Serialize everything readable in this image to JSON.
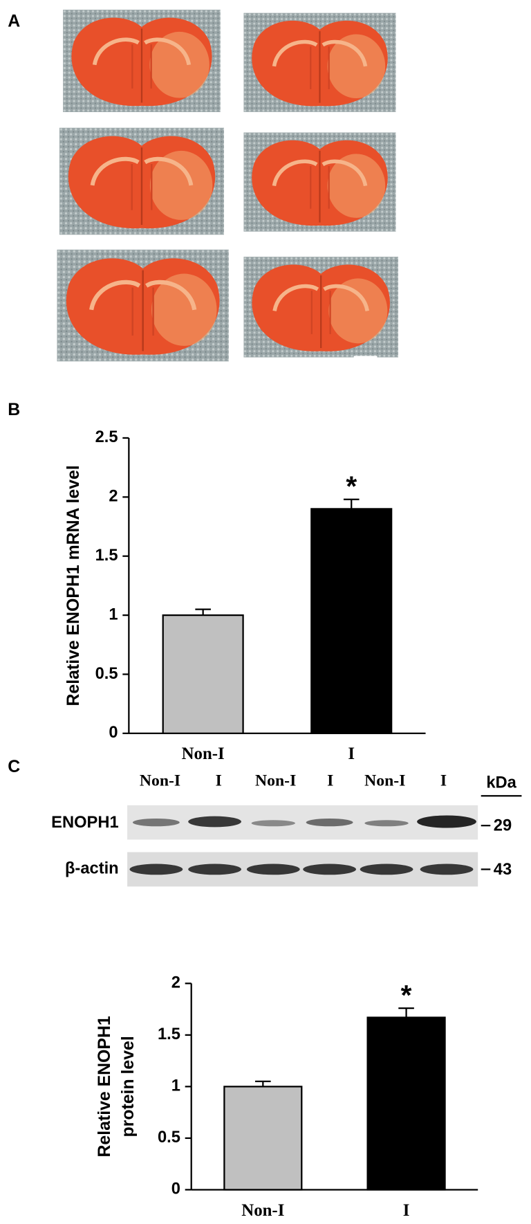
{
  "panels": [
    "A",
    "B",
    "C"
  ],
  "blot": {
    "lanes": [
      "Non-I",
      "I",
      "Non-I",
      "I",
      "Non-I",
      "I"
    ],
    "unit": "kDa",
    "rows": [
      {
        "label": "ENOPH1",
        "size": "29"
      },
      {
        "label": "β-actin",
        "size": "43"
      }
    ]
  },
  "chart_data": [
    {
      "type": "bar",
      "ylabel": [
        "Relative ENOPH1 mRNA level"
      ],
      "categories": [
        "Non-I",
        "I"
      ],
      "values": [
        1.0,
        1.9
      ],
      "errors": [
        0.05,
        0.08
      ],
      "colors": [
        "#c0c0c0",
        "#000000"
      ],
      "annotations": [
        null,
        "*"
      ],
      "ylim": [
        0,
        2.5
      ],
      "yticks": [
        0,
        0.5,
        1.0,
        1.5,
        2.0,
        2.5
      ]
    },
    {
      "type": "bar",
      "ylabel": [
        "Relative ENOPH1",
        "protein level"
      ],
      "categories": [
        "Non-I",
        "I"
      ],
      "values": [
        1.0,
        1.67
      ],
      "errors": [
        0.05,
        0.09
      ],
      "colors": [
        "#c0c0c0",
        "#000000"
      ],
      "annotations": [
        null,
        "*"
      ],
      "ylim": [
        0,
        2.0
      ],
      "yticks": [
        0,
        0.5,
        1.0,
        1.5,
        2.0
      ]
    }
  ]
}
